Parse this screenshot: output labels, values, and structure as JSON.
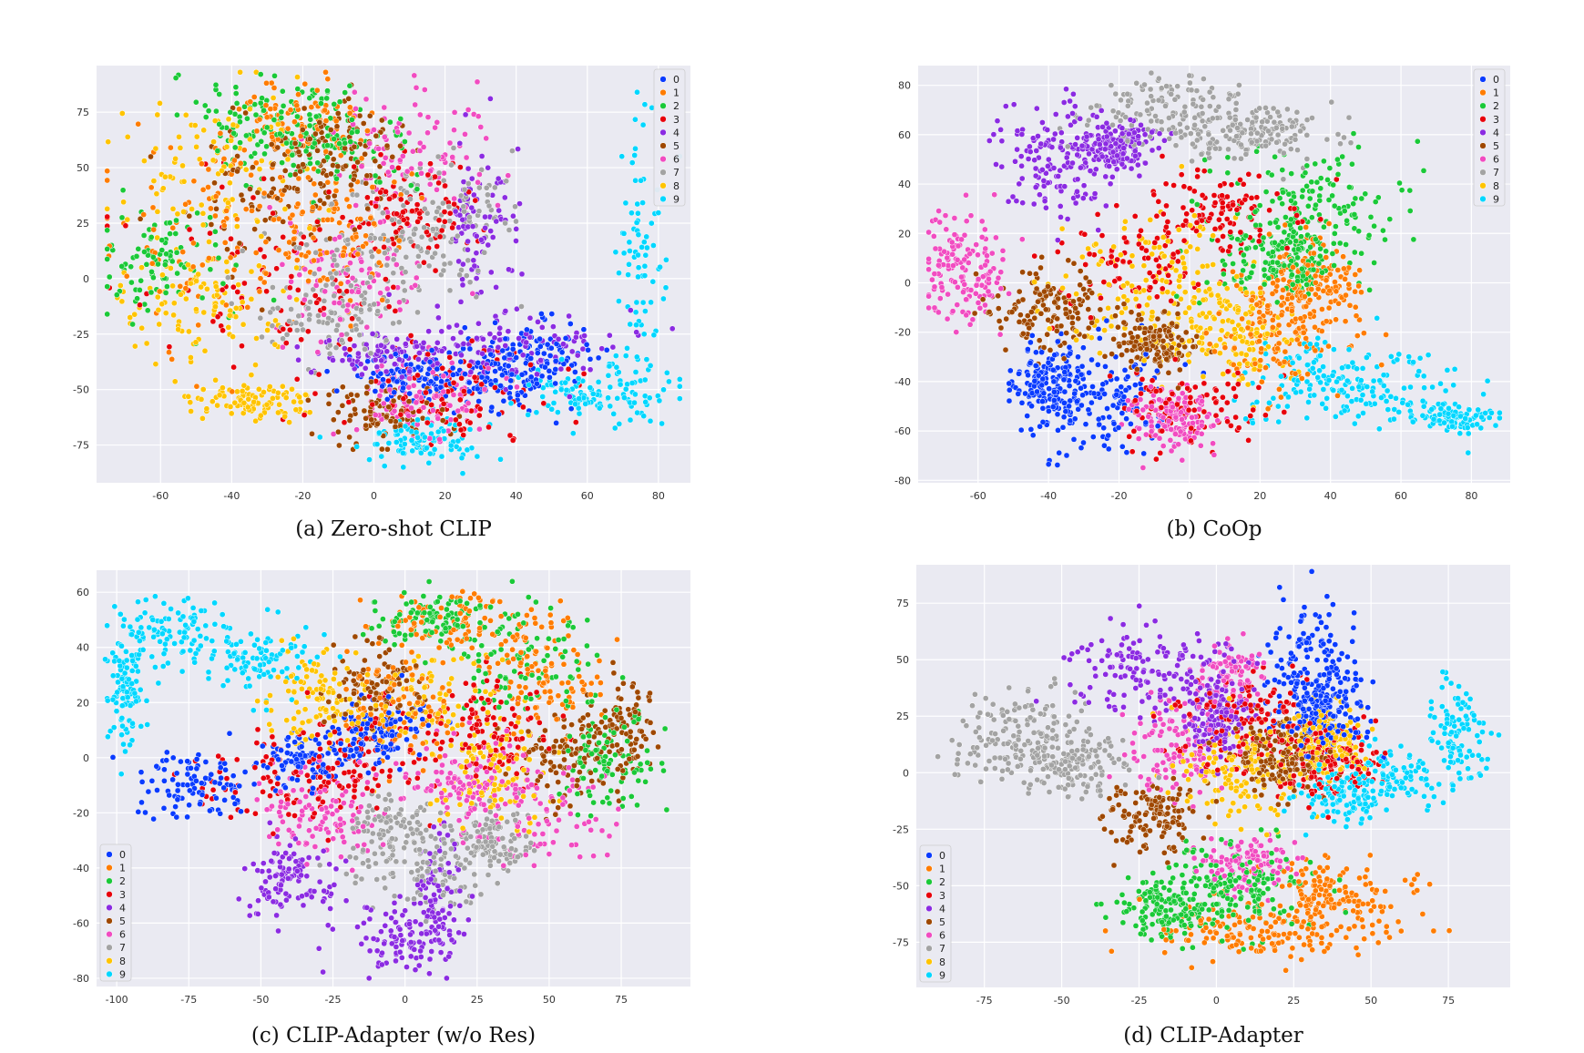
{
  "palette": [
    "#0a3bff",
    "#ff7c00",
    "#1ac938",
    "#e8000b",
    "#8b2be2",
    "#9f4800",
    "#f14cc1",
    "#a3a3a3",
    "#ffc400",
    "#00d7ff"
  ],
  "legend_labels": [
    "0",
    "1",
    "2",
    "3",
    "4",
    "5",
    "6",
    "7",
    "8",
    "9"
  ],
  "chart_data": [
    {
      "id": "a",
      "type": "scatter",
      "caption": "(a) Zero-shot CLIP",
      "legend_position": "top-right",
      "xlim": [
        -78,
        89
      ],
      "ylim": [
        -92,
        96
      ],
      "xticks": [
        -60,
        -40,
        -20,
        0,
        20,
        40,
        60,
        80
      ],
      "yticks": [
        -75,
        -50,
        -25,
        0,
        25,
        50,
        75
      ],
      "points_per_class": 300,
      "clusters": {
        "0": [
          [
            30,
            -45,
            12,
            8
          ],
          [
            10,
            -45,
            10,
            6
          ],
          [
            45,
            -35,
            8,
            8
          ]
        ],
        "1": [
          [
            -45,
            20,
            15,
            25
          ],
          [
            -20,
            70,
            10,
            10
          ],
          [
            -10,
            20,
            10,
            15
          ]
        ],
        "2": [
          [
            -60,
            10,
            10,
            15
          ],
          [
            -30,
            70,
            12,
            10
          ],
          [
            -10,
            60,
            10,
            10
          ]
        ],
        "3": [
          [
            -20,
            0,
            20,
            25
          ],
          [
            20,
            -50,
            15,
            10
          ],
          [
            10,
            30,
            10,
            10
          ]
        ],
        "4": [
          [
            30,
            20,
            5,
            20
          ],
          [
            40,
            -30,
            15,
            8
          ],
          [
            5,
            -35,
            10,
            5
          ]
        ],
        "5": [
          [
            -25,
            40,
            15,
            15
          ],
          [
            -10,
            60,
            10,
            10
          ],
          [
            5,
            -60,
            10,
            8
          ]
        ],
        "6": [
          [
            10,
            55,
            12,
            15
          ],
          [
            -5,
            0,
            10,
            15
          ],
          [
            15,
            -55,
            10,
            8
          ]
        ],
        "7": [
          [
            0,
            10,
            15,
            12
          ],
          [
            20,
            30,
            10,
            12
          ],
          [
            -10,
            -20,
            10,
            10
          ]
        ],
        "8": [
          [
            -45,
            50,
            15,
            20
          ],
          [
            -50,
            -10,
            12,
            15
          ],
          [
            -35,
            -55,
            8,
            5
          ]
        ],
        "9": [
          [
            75,
            0,
            4,
            30
          ],
          [
            62,
            -52,
            10,
            6
          ],
          [
            15,
            -72,
            8,
            5
          ]
        ]
      }
    },
    {
      "id": "b",
      "type": "scatter",
      "caption": "(b) CoOp",
      "legend_position": "top-right",
      "xlim": [
        -77,
        91
      ],
      "ylim": [
        -81,
        88
      ],
      "xticks": [
        -60,
        -40,
        -20,
        0,
        20,
        40,
        60,
        80
      ],
      "yticks": [
        -80,
        -60,
        -40,
        -20,
        0,
        20,
        40,
        60,
        80
      ],
      "points_per_class": 300,
      "clusters": {
        "0": [
          [
            -25,
            -50,
            10,
            12
          ],
          [
            -40,
            -40,
            6,
            8
          ]
        ],
        "1": [
          [
            25,
            -20,
            10,
            12
          ],
          [
            35,
            0,
            8,
            8
          ]
        ],
        "2": [
          [
            35,
            30,
            12,
            12
          ],
          [
            25,
            10,
            8,
            8
          ]
        ],
        "3": [
          [
            -15,
            10,
            12,
            10
          ],
          [
            0,
            -50,
            10,
            8
          ],
          [
            10,
            30,
            10,
            8
          ]
        ],
        "4": [
          [
            -38,
            50,
            8,
            12
          ],
          [
            -20,
            55,
            5,
            5
          ]
        ],
        "5": [
          [
            -40,
            -10,
            8,
            8
          ],
          [
            -10,
            -25,
            5,
            6
          ]
        ],
        "6": [
          [
            -65,
            5,
            6,
            12
          ],
          [
            -5,
            -55,
            6,
            6
          ]
        ],
        "7": [
          [
            -5,
            70,
            12,
            8
          ],
          [
            20,
            60,
            10,
            6
          ]
        ],
        "8": [
          [
            -10,
            0,
            12,
            15
          ],
          [
            10,
            -20,
            10,
            10
          ]
        ],
        "9": [
          [
            60,
            -45,
            12,
            8
          ],
          [
            35,
            -40,
            10,
            8
          ],
          [
            75,
            -55,
            6,
            3
          ]
        ]
      }
    },
    {
      "id": "c",
      "type": "scatter",
      "caption": "(c) CLIP-Adapter (w/o Res)",
      "legend_position": "bottom-left",
      "xlim": [
        -107,
        99
      ],
      "ylim": [
        -83,
        68
      ],
      "xticks": [
        -100,
        -75,
        -50,
        -25,
        0,
        25,
        50,
        75
      ],
      "yticks": [
        -80,
        -60,
        -40,
        -20,
        0,
        20,
        40,
        60
      ],
      "points_per_class": 300,
      "clusters": {
        "0": [
          [
            -70,
            -10,
            10,
            6
          ],
          [
            -35,
            0,
            8,
            6
          ],
          [
            -10,
            10,
            8,
            6
          ]
        ],
        "1": [
          [
            20,
            50,
            15,
            6
          ],
          [
            50,
            30,
            10,
            10
          ],
          [
            0,
            20,
            10,
            10
          ]
        ],
        "2": [
          [
            40,
            35,
            15,
            10
          ],
          [
            70,
            0,
            8,
            10
          ],
          [
            10,
            50,
            10,
            5
          ]
        ],
        "3": [
          [
            -40,
            -10,
            15,
            8
          ],
          [
            -10,
            5,
            15,
            10
          ],
          [
            30,
            10,
            10,
            10
          ]
        ],
        "4": [
          [
            0,
            -65,
            10,
            6
          ],
          [
            -40,
            -45,
            8,
            8
          ],
          [
            12,
            -50,
            5,
            10
          ]
        ],
        "5": [
          [
            55,
            0,
            10,
            8
          ],
          [
            75,
            10,
            6,
            10
          ],
          [
            -10,
            25,
            8,
            8
          ]
        ],
        "6": [
          [
            45,
            -20,
            12,
            8
          ],
          [
            20,
            -10,
            10,
            8
          ],
          [
            -30,
            -20,
            10,
            8
          ]
        ],
        "7": [
          [
            10,
            -40,
            15,
            8
          ],
          [
            -5,
            -25,
            8,
            6
          ],
          [
            30,
            -30,
            8,
            6
          ]
        ],
        "8": [
          [
            10,
            20,
            15,
            10
          ],
          [
            30,
            -5,
            10,
            10
          ],
          [
            -30,
            20,
            10,
            10
          ]
        ],
        "9": [
          [
            -80,
            45,
            12,
            6
          ],
          [
            -97,
            25,
            3,
            10
          ],
          [
            -50,
            35,
            10,
            5
          ]
        ]
      }
    },
    {
      "id": "d",
      "type": "scatter",
      "caption": "(d) CLIP-Adapter",
      "legend_position": "bottom-left",
      "xlim": [
        -97,
        95
      ],
      "ylim": [
        -95,
        92
      ],
      "xticks": [
        -75,
        -50,
        -25,
        0,
        25,
        50,
        75
      ],
      "yticks": [
        -75,
        -50,
        -25,
        0,
        25,
        50,
        75
      ],
      "points_per_class": 300,
      "clusters": {
        "0": [
          [
            30,
            45,
            8,
            15
          ],
          [
            35,
            25,
            6,
            8
          ]
        ],
        "1": [
          [
            15,
            -70,
            18,
            6
          ],
          [
            35,
            -55,
            12,
            8
          ]
        ],
        "2": [
          [
            5,
            -50,
            12,
            10
          ],
          [
            -15,
            -60,
            8,
            6
          ]
        ],
        "3": [
          [
            10,
            20,
            12,
            12
          ],
          [
            35,
            5,
            8,
            8
          ]
        ],
        "4": [
          [
            -20,
            45,
            15,
            10
          ],
          [
            0,
            25,
            5,
            8
          ]
        ],
        "5": [
          [
            -20,
            -20,
            8,
            8
          ],
          [
            20,
            5,
            8,
            8
          ]
        ],
        "6": [
          [
            -15,
            10,
            8,
            12
          ],
          [
            5,
            45,
            6,
            6
          ],
          [
            10,
            -40,
            8,
            6
          ]
        ],
        "7": [
          [
            -65,
            15,
            12,
            10
          ],
          [
            -45,
            5,
            8,
            8
          ]
        ],
        "8": [
          [
            10,
            0,
            12,
            10
          ],
          [
            35,
            15,
            8,
            8
          ]
        ],
        "9": [
          [
            60,
            0,
            12,
            8
          ],
          [
            78,
            20,
            5,
            10
          ],
          [
            40,
            -10,
            8,
            6
          ]
        ]
      }
    }
  ]
}
